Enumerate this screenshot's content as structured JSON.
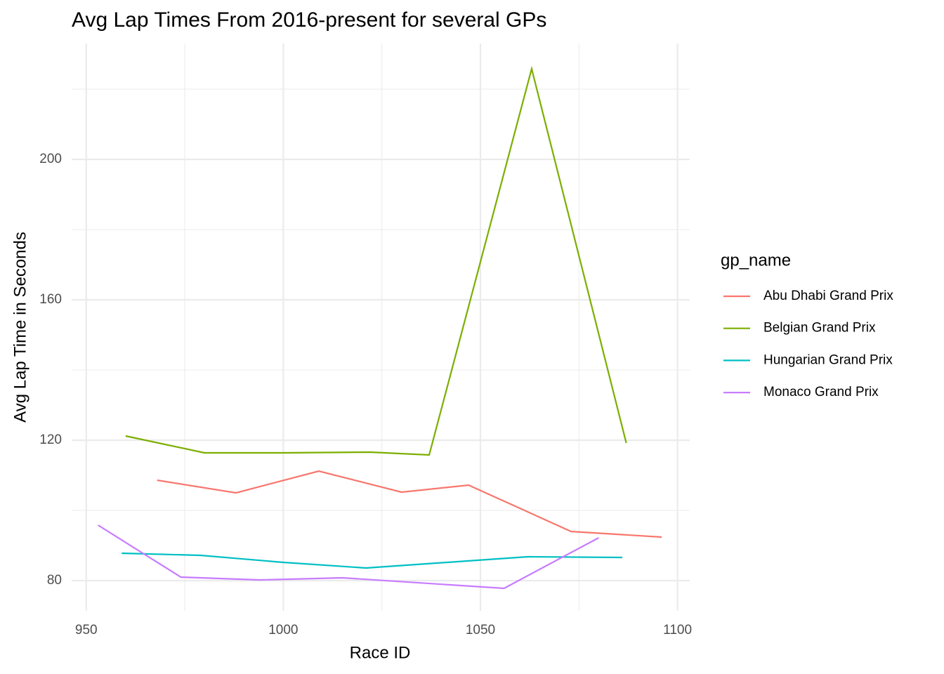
{
  "chart_data": {
    "type": "line",
    "title": "Avg Lap Times From 2016-present for several GPs",
    "x_label": "Race ID",
    "y_label": "Avg Lap Time in Seconds",
    "legend_title": "gp_name",
    "xlim": [
      946.3,
      1103.1
    ],
    "xticks": [
      950,
      1000,
      1050,
      1100
    ],
    "ylim": [
      71.4,
      233
    ],
    "yticks": [
      80,
      120,
      160,
      200
    ],
    "grid": true,
    "legend": "right",
    "series": [
      {
        "name": "Abu Dhabi Grand Prix",
        "color": "#F8766D",
        "x": [
          968,
          988,
          1009,
          1030,
          1047,
          1073,
          1096
        ],
        "values": [
          108.6,
          105.0,
          111.2,
          105.2,
          107.2,
          94.0,
          92.4
        ]
      },
      {
        "name": "Belgian Grand Prix",
        "color": "#7CAE00",
        "x": [
          960,
          980,
          1000,
          1022,
          1037,
          1063,
          1087
        ],
        "values": [
          121.2,
          116.4,
          116.4,
          116.6,
          115.8,
          225.8,
          119.2
        ]
      },
      {
        "name": "Hungarian Grand Prix",
        "color": "#00BFC4",
        "x": [
          959,
          979,
          1000,
          1021,
          1062,
          1086
        ],
        "values": [
          87.8,
          87.2,
          85.2,
          83.6,
          86.8,
          86.6
        ]
      },
      {
        "name": "Monaco Grand Prix",
        "color": "#C77CFF",
        "x": [
          953,
          974,
          994,
          1015,
          1056,
          1080
        ],
        "values": [
          95.8,
          81.0,
          80.2,
          80.8,
          77.8,
          92.2
        ]
      }
    ]
  }
}
